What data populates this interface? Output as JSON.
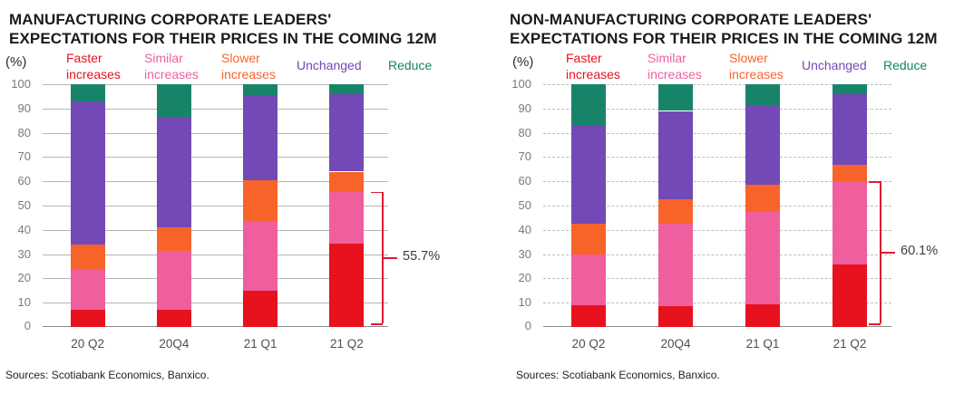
{
  "page": {
    "background": "#ffffff"
  },
  "charts": [
    {
      "title_line1": "MANUFACTURING CORPORATE LEADERS'",
      "title_line2": "EXPECTATIONS FOR THEIR PRICES IN THE COMING 12M",
      "unit_label": "(%)",
      "sources": "Sources: Scotiabank Economics, Banxico.",
      "annotation": {
        "label": "55.7%",
        "from": 0,
        "to": 55.7,
        "color": "#de1a31"
      },
      "gridline_style": "solid",
      "chart_data": {
        "type": "bar",
        "stacked": true,
        "title": "MANUFACTURING CORPORATE LEADERS' EXPECTATIONS FOR THEIR PRICES IN THE COMING 12M",
        "categories": [
          "20 Q2",
          "20Q4",
          "21 Q1",
          "21 Q2"
        ],
        "series": [
          {
            "name": "Faster increases",
            "color": "#e8111e",
            "values": [
              7.0,
              7.0,
              15.0,
              34.3
            ]
          },
          {
            "name": "Similar increases",
            "color": "#ef5f9e",
            "values": [
              16.4,
              24.3,
              28.5,
              21.4
            ]
          },
          {
            "name": "Slower increases",
            "color": "#f8632a",
            "values": [
              10.4,
              9.8,
              17.0,
              8.3
            ]
          },
          {
            "name": "Unchanged",
            "color": "#7349b5",
            "values": [
              59.2,
              45.4,
              34.5,
              31.9
            ]
          },
          {
            "name": "Reduce",
            "color": "#17846a",
            "values": [
              7.0,
              13.5,
              5.0,
              4.1
            ]
          }
        ],
        "ylabel": "(%)",
        "ylim": [
          0,
          100
        ],
        "ytick_step": 10,
        "grid": true,
        "legend_position": "top"
      }
    },
    {
      "title_line1": "NON-MANUFACTURING CORPORATE LEADERS'",
      "title_line2": "EXPECTATIONS FOR THEIR PRICES IN THE COMING 12M",
      "unit_label": "(%)",
      "sources": "Sources: Scotiabank Economics, Banxico.",
      "annotation": {
        "label": "60.1%",
        "from": 0,
        "to": 60.1,
        "color": "#de1a31"
      },
      "gridline_style": "dashed",
      "chart_data": {
        "type": "bar",
        "stacked": true,
        "title": "NON-MANUFACTURING CORPORATE LEADERS' EXPECTATIONS FOR THEIR PRICES IN THE COMING 12M",
        "categories": [
          "20 Q2",
          "20Q4",
          "21 Q1",
          "21 Q2"
        ],
        "series": [
          {
            "name": "Faster increases",
            "color": "#e8111e",
            "values": [
              9.0,
              8.5,
              9.5,
              25.7
            ]
          },
          {
            "name": "Similar increases",
            "color": "#ef5f9e",
            "values": [
              21.0,
              34.0,
              37.8,
              34.4
            ]
          },
          {
            "name": "Slower increases",
            "color": "#f8632a",
            "values": [
              12.5,
              10.0,
              11.3,
              6.6
            ]
          },
          {
            "name": "Unchanged",
            "color": "#7349b5",
            "values": [
              40.5,
              36.5,
              32.7,
              29.2
            ]
          },
          {
            "name": "Reduce",
            "color": "#17846a",
            "values": [
              17.0,
              11.0,
              8.7,
              4.1
            ]
          }
        ],
        "ylabel": "(%)",
        "ylim": [
          0,
          100
        ],
        "ytick_step": 10,
        "grid": true,
        "legend_position": "top"
      }
    }
  ]
}
